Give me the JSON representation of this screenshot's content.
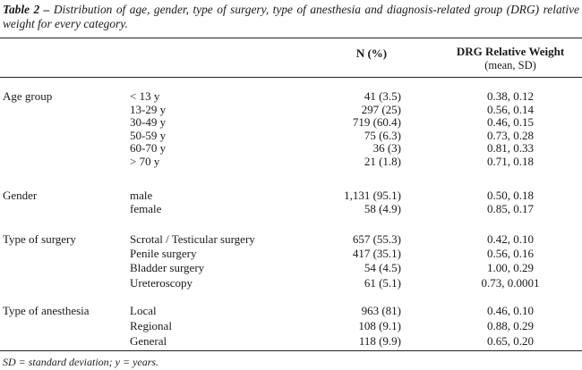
{
  "caption": {
    "label": "Table 2 –",
    "text": "Distribution of age, gender, type of surgery, type of anesthesia and diagnosis-related group (DRG) relative weight for every category."
  },
  "headers": {
    "n": "N (%)",
    "drg": "DRG Relative Weight",
    "drg_sub": "(mean, SD)"
  },
  "groups": [
    {
      "name": "Age group",
      "rows": [
        {
          "label": "< 13 y",
          "n": "41 (3.5)",
          "drg": "0.38, 0.12"
        },
        {
          "label": "13-29 y",
          "n": "297 (25)",
          "drg": "0.56, 0.14"
        },
        {
          "label": "30-49 y",
          "n": "719 (60.4)",
          "drg": "0.46, 0.15"
        },
        {
          "label": "50-59 y",
          "n": "75 (6.3)",
          "drg": "0.73, 0.28"
        },
        {
          "label": "60-70 y",
          "n": "36 (3)",
          "drg": "0.81, 0.33"
        },
        {
          "label": "> 70 y",
          "n": "21 (1.8)",
          "drg": "0.71, 0.18"
        }
      ]
    },
    {
      "name": "Gender",
      "rows": [
        {
          "label": "male",
          "n": "1,131 (95.1)",
          "drg": "0.50, 0.18"
        },
        {
          "label": "female",
          "n": "58 (4.9)",
          "drg": "0.85, 0.17"
        }
      ]
    },
    {
      "name": "Type of surgery",
      "rows": [
        {
          "label": "Scrotal / Testicular surgery",
          "n": "657 (55.3)",
          "drg": "0.42, 0.10"
        },
        {
          "label": "Penile surgery",
          "n": "417 (35.1)",
          "drg": "0.56, 0.16"
        },
        {
          "label": "Bladder surgery",
          "n": "54 (4.5)",
          "drg": "1.00, 0.29"
        },
        {
          "label": "Ureteroscopy",
          "n": "61 (5.1)",
          "drg": "0.73, 0.0001"
        }
      ]
    },
    {
      "name": "Type of anesthesia",
      "rows": [
        {
          "label": "Local",
          "n": "963 (81)",
          "drg": "0.46, 0.10"
        },
        {
          "label": "Regional",
          "n": "108 (9.1)",
          "drg": "0.88, 0.29"
        },
        {
          "label": "General",
          "n": "118 (9.9)",
          "drg": "0.65, 0.20"
        }
      ]
    }
  ],
  "footnote": "SD = standard deviation; y = years."
}
